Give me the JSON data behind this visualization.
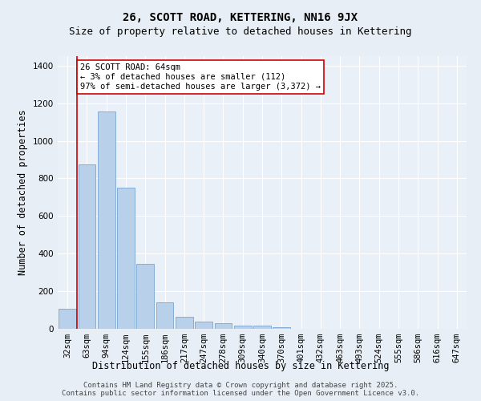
{
  "title": "26, SCOTT ROAD, KETTERING, NN16 9JX",
  "subtitle": "Size of property relative to detached houses in Kettering",
  "xlabel": "Distribution of detached houses by size in Kettering",
  "ylabel": "Number of detached properties",
  "categories": [
    "32sqm",
    "63sqm",
    "94sqm",
    "124sqm",
    "155sqm",
    "186sqm",
    "217sqm",
    "247sqm",
    "278sqm",
    "309sqm",
    "340sqm",
    "370sqm",
    "401sqm",
    "432sqm",
    "463sqm",
    "493sqm",
    "524sqm",
    "555sqm",
    "586sqm",
    "616sqm",
    "647sqm"
  ],
  "values": [
    105,
    875,
    1155,
    752,
    345,
    140,
    65,
    38,
    28,
    18,
    15,
    8,
    2,
    0,
    0,
    0,
    0,
    0,
    0,
    0,
    0
  ],
  "bar_color": "#b8d0ea",
  "bar_edge_color": "#6699cc",
  "vline_x": 0.5,
  "vline_color": "#cc0000",
  "annotation_text": "26 SCOTT ROAD: 64sqm\n← 3% of detached houses are smaller (112)\n97% of semi-detached houses are larger (3,372) →",
  "annotation_box_color": "#cc0000",
  "ylim": [
    0,
    1450
  ],
  "yticks": [
    0,
    200,
    400,
    600,
    800,
    1000,
    1200,
    1400
  ],
  "bg_color": "#e8eef5",
  "plot_bg_color": "#eaf0f8",
  "grid_color": "#ffffff",
  "footer_text": "Contains HM Land Registry data © Crown copyright and database right 2025.\nContains public sector information licensed under the Open Government Licence v3.0.",
  "title_fontsize": 10,
  "subtitle_fontsize": 9,
  "axis_label_fontsize": 8.5,
  "tick_fontsize": 7.5,
  "annotation_fontsize": 7.5,
  "footer_fontsize": 6.5
}
